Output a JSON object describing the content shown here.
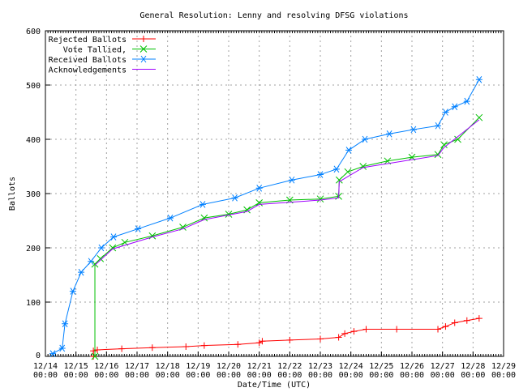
{
  "chart_data": {
    "type": "line",
    "title": "General Resolution: Lenny and resolving DFSG violations",
    "xlabel": "Date/Time (UTC)",
    "ylabel": "Ballots",
    "ylim": [
      0,
      600
    ],
    "yticks": [
      0,
      100,
      200,
      300,
      400,
      500,
      600
    ],
    "xticks": [
      "12/14",
      "12/15",
      "12/16",
      "12/17",
      "12/18",
      "12/19",
      "12/20",
      "12/21",
      "12/22",
      "12/23",
      "12/24",
      "12/25",
      "12/26",
      "12/27",
      "12/28",
      "12/29"
    ],
    "xtick_time": "00:00",
    "x_units": "days since 12/14 00:00 on the axis",
    "grid": true,
    "legend": "top-left",
    "series": [
      {
        "name": "Rejected Ballots",
        "color": "#ff0000",
        "marker": "plus",
        "points": [
          [
            1.57,
            0
          ],
          [
            1.57,
            10
          ],
          [
            1.7,
            12
          ],
          [
            2.5,
            14
          ],
          [
            3.5,
            16
          ],
          [
            4.6,
            18
          ],
          [
            5.2,
            20
          ],
          [
            6.3,
            22
          ],
          [
            7.0,
            25
          ],
          [
            7.1,
            28
          ],
          [
            8.0,
            30
          ],
          [
            9.0,
            32
          ],
          [
            9.6,
            35
          ],
          [
            9.8,
            42
          ],
          [
            10.1,
            46
          ],
          [
            10.5,
            50
          ],
          [
            11.5,
            50
          ],
          [
            12.85,
            50
          ],
          [
            13.1,
            55
          ],
          [
            13.4,
            62
          ],
          [
            13.8,
            66
          ],
          [
            14.2,
            70
          ]
        ]
      },
      {
        "name": "Vote Tallied,",
        "color": "#00c000",
        "marker": "x",
        "points": [
          [
            1.62,
            0
          ],
          [
            1.62,
            170
          ],
          [
            1.8,
            180
          ],
          [
            2.2,
            200
          ],
          [
            2.6,
            210
          ],
          [
            3.5,
            222
          ],
          [
            4.5,
            238
          ],
          [
            5.2,
            255
          ],
          [
            6.0,
            262
          ],
          [
            6.6,
            270
          ],
          [
            7.0,
            283
          ],
          [
            8.0,
            288
          ],
          [
            9.0,
            290
          ],
          [
            9.6,
            295
          ],
          [
            9.62,
            325
          ],
          [
            9.9,
            340
          ],
          [
            10.4,
            350
          ],
          [
            11.2,
            360
          ],
          [
            12.0,
            367
          ],
          [
            12.85,
            372
          ],
          [
            13.05,
            390
          ],
          [
            13.5,
            400
          ],
          [
            14.2,
            440
          ]
        ]
      },
      {
        "name": "Received Ballots",
        "color": "#0080ff",
        "marker": "star",
        "points": [
          [
            0.24,
            5
          ],
          [
            0.55,
            15
          ],
          [
            0.64,
            60
          ],
          [
            0.9,
            120
          ],
          [
            1.17,
            155
          ],
          [
            1.49,
            175
          ],
          [
            1.83,
            200
          ],
          [
            2.23,
            220
          ],
          [
            3.03,
            235
          ],
          [
            4.09,
            255
          ],
          [
            5.15,
            280
          ],
          [
            6.2,
            292
          ],
          [
            7.0,
            310
          ],
          [
            8.07,
            325
          ],
          [
            9.0,
            335
          ],
          [
            9.53,
            345
          ],
          [
            9.93,
            380
          ],
          [
            10.46,
            400
          ],
          [
            11.26,
            410
          ],
          [
            12.05,
            418
          ],
          [
            12.85,
            425
          ],
          [
            13.1,
            450
          ],
          [
            13.4,
            460
          ],
          [
            13.8,
            470
          ],
          [
            14.2,
            510
          ]
        ]
      },
      {
        "name": "Acknowledgements",
        "color": "#a000ff",
        "marker": "none",
        "points": [
          [
            1.62,
            168
          ],
          [
            2.2,
            198
          ],
          [
            3.5,
            220
          ],
          [
            4.5,
            235
          ],
          [
            5.2,
            252
          ],
          [
            6.6,
            267
          ],
          [
            7.0,
            280
          ],
          [
            9.0,
            288
          ],
          [
            9.6,
            292
          ],
          [
            9.62,
            322
          ],
          [
            10.4,
            348
          ],
          [
            12.85,
            370
          ],
          [
            13.05,
            385
          ],
          [
            14.2,
            436
          ]
        ]
      }
    ]
  }
}
